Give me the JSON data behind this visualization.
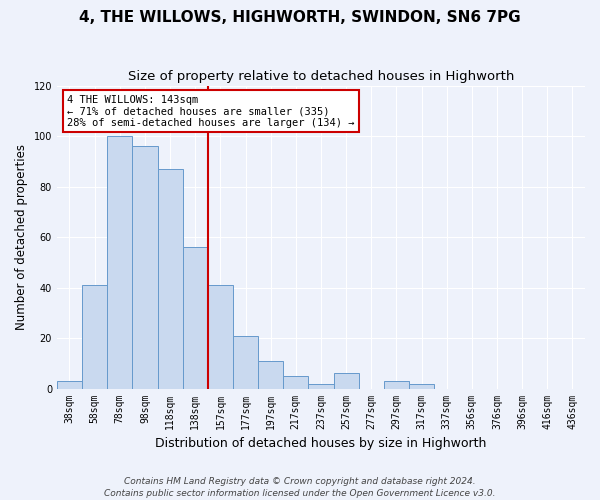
{
  "title": "4, THE WILLOWS, HIGHWORTH, SWINDON, SN6 7PG",
  "subtitle": "Size of property relative to detached houses in Highworth",
  "xlabel": "Distribution of detached houses by size in Highworth",
  "ylabel": "Number of detached properties",
  "bar_labels": [
    "38sqm",
    "58sqm",
    "78sqm",
    "98sqm",
    "118sqm",
    "138sqm",
    "157sqm",
    "177sqm",
    "197sqm",
    "217sqm",
    "237sqm",
    "257sqm",
    "277sqm",
    "297sqm",
    "317sqm",
    "337sqm",
    "356sqm",
    "376sqm",
    "396sqm",
    "416sqm",
    "436sqm"
  ],
  "bar_values": [
    3,
    41,
    100,
    96,
    87,
    56,
    41,
    21,
    11,
    5,
    2,
    6,
    0,
    3,
    2,
    0,
    0,
    0,
    0,
    0,
    0
  ],
  "bar_color": "#c9d9ef",
  "bar_edge_color": "#6699cc",
  "ylim": [
    0,
    120
  ],
  "yticks": [
    0,
    20,
    40,
    60,
    80,
    100,
    120
  ],
  "vline_x": 5.5,
  "vline_color": "#cc0000",
  "annotation_text": "4 THE WILLOWS: 143sqm\n← 71% of detached houses are smaller (335)\n28% of semi-detached houses are larger (134) →",
  "annotation_box_color": "#ffffff",
  "annotation_box_edge": "#cc0000",
  "footnote": "Contains HM Land Registry data © Crown copyright and database right 2024.\nContains public sector information licensed under the Open Government Licence v3.0.",
  "title_fontsize": 11,
  "subtitle_fontsize": 9.5,
  "xlabel_fontsize": 9,
  "ylabel_fontsize": 8.5,
  "footnote_fontsize": 6.5,
  "bg_color": "#eef2fb",
  "grid_color": "#ffffff",
  "tick_fontsize": 7
}
